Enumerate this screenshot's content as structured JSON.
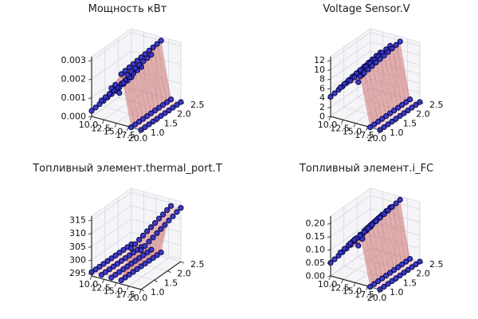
{
  "figure": {
    "background": "#ffffff",
    "pane_color": "#ededf3",
    "grid_color": "#d7d7df",
    "spine_color": "#2b2b2b",
    "tick_label_color": "#111111",
    "title_color": "#1c1c1c"
  },
  "chart_data": [
    {
      "id": "power",
      "type": "scatter",
      "subtype": "3d-scatter-with-surface",
      "title": "Мощность кВт",
      "xlim": [
        10,
        20
      ],
      "ylim": [
        1.0,
        2.5
      ],
      "zlim": [
        0,
        0.0032
      ],
      "x": [
        10,
        12,
        14,
        16,
        18,
        20
      ],
      "y": [
        1.0,
        1.15,
        1.3,
        1.45,
        1.6,
        1.75,
        1.9,
        2.05,
        2.2,
        2.35,
        2.5
      ],
      "z": [
        [
          0.0003,
          0.00033,
          0.00036,
          0.00039,
          0.00042,
          0.00045,
          0.00048,
          0.00051,
          0.00054,
          0.00057,
          0.0006
        ],
        [
          0.001,
          0.00103,
          0.00106,
          0.00109,
          0.00112,
          0.00115,
          0.00118,
          0.00121,
          0.00124,
          0.00127,
          0.0013
        ],
        [
          0.0018,
          0.00183,
          0.00125,
          0.00165,
          0.00192,
          0.00195,
          0.00198,
          0.00201,
          0.00204,
          0.00207,
          0.0021
        ],
        [
          0.0027,
          0.00273,
          0.00276,
          0.00279,
          0.00282,
          0.00285,
          0.00288,
          0.00291,
          0.00294,
          0.00297,
          0.003
        ],
        [
          0,
          0,
          0,
          0,
          0,
          0,
          0,
          0,
          0,
          0,
          0
        ],
        [
          0,
          0,
          0,
          0,
          0,
          0,
          0,
          0,
          0,
          0,
          0
        ]
      ],
      "xticks": [
        {
          "v": 10,
          "label": "10.0"
        },
        {
          "v": 12.5,
          "label": "12.5"
        },
        {
          "v": 15,
          "label": "15.0"
        },
        {
          "v": 17.5,
          "label": "17.5"
        },
        {
          "v": 20,
          "label": "20.0"
        }
      ],
      "yticks": [
        {
          "v": 1.0,
          "label": "1.0"
        },
        {
          "v": 1.5,
          "label": "1.5"
        },
        {
          "v": 2.0,
          "label": "2.0"
        },
        {
          "v": 2.5,
          "label": "2.5"
        }
      ],
      "zticks": [
        {
          "v": 0,
          "label": "0.000"
        },
        {
          "v": 0.001,
          "label": "0.001"
        },
        {
          "v": 0.002,
          "label": "0.002"
        },
        {
          "v": 0.003,
          "label": "0.003"
        }
      ],
      "colors": {
        "point": "#3535c8",
        "point_edge": "#050540",
        "surface_low": "#f9d5d5",
        "surface_high": "#ce7676"
      }
    },
    {
      "id": "voltage",
      "type": "scatter",
      "subtype": "3d-scatter-with-surface",
      "title": "Voltage Sensor.V",
      "xlim": [
        10,
        20
      ],
      "ylim": [
        1.0,
        2.5
      ],
      "zlim": [
        0,
        12.8
      ],
      "x": [
        10,
        12,
        14,
        16,
        18,
        20
      ],
      "y": [
        1.0,
        1.15,
        1.3,
        1.45,
        1.6,
        1.75,
        1.9,
        2.05,
        2.2,
        2.35,
        2.5
      ],
      "z": [
        [
          4.2,
          4.35,
          4.5,
          4.65,
          4.8,
          4.95,
          5.1,
          5.25,
          5.4,
          5.55,
          5.7
        ],
        [
          6.8,
          6.95,
          7.1,
          7.25,
          7.4,
          7.55,
          7.7,
          7.85,
          8.0,
          8.15,
          8.3
        ],
        [
          8.8,
          8.95,
          7.3,
          8.3,
          9.4,
          9.55,
          9.7,
          9.85,
          10.0,
          10.15,
          10.3
        ],
        [
          10.3,
          10.45,
          10.6,
          10.75,
          10.9,
          11.05,
          11.2,
          11.35,
          11.5,
          11.65,
          11.8
        ],
        [
          0,
          0,
          0,
          0,
          0,
          0,
          0,
          0,
          0,
          0,
          0
        ],
        [
          0,
          0,
          0,
          0,
          0,
          0,
          0,
          0,
          0,
          0,
          0
        ]
      ],
      "xticks": [
        {
          "v": 10,
          "label": "10.0"
        },
        {
          "v": 12.5,
          "label": "12.5"
        },
        {
          "v": 15,
          "label": "15.0"
        },
        {
          "v": 17.5,
          "label": "17.5"
        },
        {
          "v": 20,
          "label": "20.0"
        }
      ],
      "yticks": [
        {
          "v": 1.0,
          "label": "1.0"
        },
        {
          "v": 1.5,
          "label": "1.5"
        },
        {
          "v": 2.0,
          "label": "2.0"
        },
        {
          "v": 2.5,
          "label": "2.5"
        }
      ],
      "zticks": [
        {
          "v": 0,
          "label": "0"
        },
        {
          "v": 2,
          "label": "2"
        },
        {
          "v": 4,
          "label": "4"
        },
        {
          "v": 6,
          "label": "6"
        },
        {
          "v": 8,
          "label": "8"
        },
        {
          "v": 10,
          "label": "10"
        },
        {
          "v": 12,
          "label": "12"
        }
      ],
      "colors": {
        "point": "#3535c8",
        "point_edge": "#050540",
        "surface_low": "#f9d5d5",
        "surface_high": "#ce7676"
      }
    },
    {
      "id": "thermal-port-t",
      "type": "scatter",
      "subtype": "3d-scatter-with-surface",
      "title": "Топливный элемент.thermal_port.T",
      "xlim": [
        10,
        20
      ],
      "ylim": [
        1.0,
        2.5
      ],
      "zlim": [
        294,
        316.5
      ],
      "x": [
        10,
        12,
        14,
        16,
        18,
        20
      ],
      "y": [
        1.0,
        1.15,
        1.3,
        1.45,
        1.6,
        1.75,
        1.9,
        2.05,
        2.2,
        2.35,
        2.5
      ],
      "z": [
        [
          295.4,
          295.4,
          295.4,
          295.4,
          295.4,
          295.4,
          295.4,
          295.4,
          295.4,
          295.4,
          295.4
        ],
        [
          295.4,
          295.4,
          295.4,
          295.4,
          295.4,
          295.4,
          295.4,
          295.4,
          295.4,
          295.4,
          295.4
        ],
        [
          295.4,
          295.4,
          295.4,
          295.4,
          295.4,
          295.4,
          295.4,
          295.4,
          295.4,
          295.4,
          295.4
        ],
        [
          295.4,
          295.4,
          295.4,
          295.4,
          295.4,
          295.4,
          295.4,
          295.4,
          295.4,
          295.4,
          295.4
        ],
        [
          308.5,
          309.0,
          309.6,
          310.1,
          310.7,
          311.2,
          311.7,
          312.3,
          312.8,
          313.4,
          313.9
        ],
        [
          308.8,
          309.3,
          309.9,
          310.4,
          311.0,
          311.5,
          312.0,
          312.6,
          313.1,
          313.7,
          314.2
        ]
      ],
      "xticks": [
        {
          "v": 10,
          "label": "10.0"
        },
        {
          "v": 12.5,
          "label": "12.5"
        },
        {
          "v": 15,
          "label": "15.0"
        },
        {
          "v": 17.5,
          "label": "17.5"
        },
        {
          "v": 20,
          "label": "20.0"
        }
      ],
      "yticks": [
        {
          "v": 1.0,
          "label": "1.0"
        },
        {
          "v": 1.5,
          "label": "1.5"
        },
        {
          "v": 2.0,
          "label": "2.0"
        },
        {
          "v": 2.5,
          "label": "2.5"
        }
      ],
      "zticks": [
        {
          "v": 295,
          "label": "295"
        },
        {
          "v": 300,
          "label": "300"
        },
        {
          "v": 305,
          "label": "305"
        },
        {
          "v": 310,
          "label": "310"
        },
        {
          "v": 315,
          "label": "315"
        }
      ],
      "colors": {
        "point": "#3535c8",
        "point_edge": "#050540",
        "surface_low": "#f9d5d5",
        "surface_high": "#ce7676"
      }
    },
    {
      "id": "i-fc",
      "type": "scatter",
      "subtype": "3d-scatter-with-surface",
      "title": "Топливный элемент.i_FC",
      "xlim": [
        10,
        20
      ],
      "ylim": [
        1.0,
        2.5
      ],
      "zlim": [
        0,
        0.228
      ],
      "x": [
        10,
        12,
        14,
        16,
        18,
        20
      ],
      "y": [
        1.0,
        1.15,
        1.3,
        1.45,
        1.6,
        1.75,
        1.9,
        2.05,
        2.2,
        2.35,
        2.5
      ],
      "z": [
        [
          0.05,
          0.053,
          0.056,
          0.059,
          0.062,
          0.065,
          0.068,
          0.071,
          0.074,
          0.077,
          0.08
        ],
        [
          0.1,
          0.103,
          0.106,
          0.109,
          0.112,
          0.115,
          0.118,
          0.121,
          0.124,
          0.127,
          0.13
        ],
        [
          0.145,
          0.148,
          0.115,
          0.13,
          0.157,
          0.16,
          0.163,
          0.166,
          0.169,
          0.172,
          0.175
        ],
        [
          0.185,
          0.188,
          0.191,
          0.194,
          0.197,
          0.2,
          0.203,
          0.206,
          0.209,
          0.212,
          0.215
        ],
        [
          0,
          0,
          0,
          0,
          0,
          0,
          0,
          0,
          0,
          0,
          0
        ],
        [
          0,
          0,
          0,
          0,
          0,
          0,
          0,
          0,
          0,
          0,
          0
        ]
      ],
      "xticks": [
        {
          "v": 10,
          "label": "10.0"
        },
        {
          "v": 12.5,
          "label": "12.5"
        },
        {
          "v": 15,
          "label": "15.0"
        },
        {
          "v": 17.5,
          "label": "17.5"
        },
        {
          "v": 20,
          "label": "20.0"
        }
      ],
      "yticks": [
        {
          "v": 1.0,
          "label": "1.0"
        },
        {
          "v": 1.5,
          "label": "1.5"
        },
        {
          "v": 2.0,
          "label": "2.0"
        },
        {
          "v": 2.5,
          "label": "2.5"
        }
      ],
      "zticks": [
        {
          "v": 0,
          "label": "0.00"
        },
        {
          "v": 0.05,
          "label": "0.05"
        },
        {
          "v": 0.1,
          "label": "0.10"
        },
        {
          "v": 0.15,
          "label": "0.15"
        },
        {
          "v": 0.2,
          "label": "0.20"
        }
      ],
      "colors": {
        "point": "#3535c8",
        "point_edge": "#050540",
        "surface_low": "#f9d5d5",
        "surface_high": "#ce7676"
      }
    }
  ]
}
